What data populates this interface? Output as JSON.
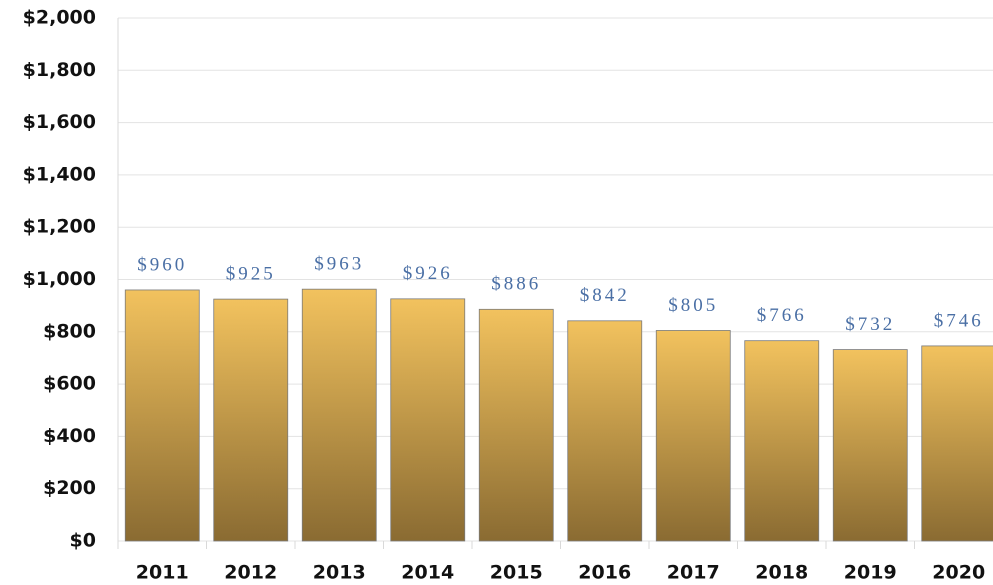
{
  "chart_data": {
    "type": "bar",
    "categories": [
      "2011",
      "2012",
      "2013",
      "2014",
      "2015",
      "2016",
      "2017",
      "2018",
      "2019",
      "2020"
    ],
    "values": [
      960,
      925,
      963,
      926,
      886,
      842,
      805,
      766,
      732,
      746
    ],
    "value_labels": [
      "$960",
      "$925",
      "$963",
      "$926",
      "$886",
      "$842",
      "$805",
      "$766",
      "$732",
      "$746"
    ],
    "color": "#e8b95a",
    "ylim": [
      0,
      2000
    ],
    "yticks": [
      {
        "value": 0,
        "label": "$0"
      },
      {
        "value": 200,
        "label": "$200"
      },
      {
        "value": 400,
        "label": "$400"
      },
      {
        "value": 600,
        "label": "$600"
      },
      {
        "value": 800,
        "label": "$800"
      },
      {
        "value": 1000,
        "label": "$1,000"
      },
      {
        "value": 1200,
        "label": "$1,200"
      },
      {
        "value": 1400,
        "label": "$1,400"
      },
      {
        "value": 1600,
        "label": "$1,600"
      },
      {
        "value": 1800,
        "label": "$1,800"
      },
      {
        "value": 2000,
        "label": "$2,000"
      }
    ],
    "grid": true
  }
}
